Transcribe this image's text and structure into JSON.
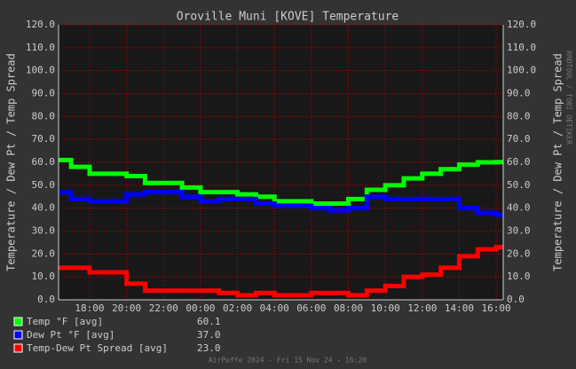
{
  "chart_data": {
    "type": "line",
    "step": true,
    "title": "Oroville Muni [KOVE] Temperature",
    "ylabel": "Temperature / Dew Pt / Temp Spread",
    "y2label": "Temperature / Dew Pt / Temp Spread",
    "watermark": "RRDTOOL / TOBI OETIKER",
    "footer": "AirPuffe 2024 - Fri 15 Nov 24 - 16:20",
    "x": [
      0.32,
      1,
      2,
      3,
      4,
      5,
      6,
      7,
      8,
      9,
      10,
      11,
      12,
      13,
      14,
      15,
      16,
      17,
      18,
      19,
      20,
      21,
      22,
      23,
      24
    ],
    "xlim": [
      0.32,
      24.38
    ],
    "xticks": [
      {
        "value": 2,
        "label": "18:00"
      },
      {
        "value": 4,
        "label": "20:00"
      },
      {
        "value": 6,
        "label": "22:00"
      },
      {
        "value": 8,
        "label": "00:00"
      },
      {
        "value": 10,
        "label": "02:00"
      },
      {
        "value": 12,
        "label": "04:00"
      },
      {
        "value": 14,
        "label": "06:00"
      },
      {
        "value": 16,
        "label": "08:00"
      },
      {
        "value": 18,
        "label": "10:00"
      },
      {
        "value": 20,
        "label": "12:00"
      },
      {
        "value": 22,
        "label": "14:00"
      },
      {
        "value": 24,
        "label": "16:00"
      }
    ],
    "ylim": [
      0,
      120
    ],
    "yticks": [
      {
        "value": 0,
        "label": "0.0"
      },
      {
        "value": 10,
        "label": "10.0"
      },
      {
        "value": 20,
        "label": "20.0"
      },
      {
        "value": 30,
        "label": "30.0"
      },
      {
        "value": 40,
        "label": "40.0"
      },
      {
        "value": 50,
        "label": "50.0"
      },
      {
        "value": 60,
        "label": "60.0"
      },
      {
        "value": 70,
        "label": "70.0"
      },
      {
        "value": 80,
        "label": "80.0"
      },
      {
        "value": 90,
        "label": "90.0"
      },
      {
        "value": 100,
        "label": "100.0"
      },
      {
        "value": 110,
        "label": "110.0"
      },
      {
        "value": 120,
        "label": "120.0"
      }
    ],
    "grid": true,
    "series": [
      {
        "name": "Temp °F [avg]",
        "color": "#00ff00",
        "legend_value": "60.1",
        "values": [
          61,
          58,
          55,
          55,
          54,
          51,
          51,
          49,
          47,
          47,
          46,
          45,
          43,
          43,
          42,
          42,
          44,
          48,
          50,
          53,
          55,
          57,
          59,
          60,
          60.1
        ]
      },
      {
        "name": "Dew Pt °F [avg]",
        "color": "#0000ff",
        "legend_value": "37.0",
        "values": [
          47,
          44,
          43,
          43,
          46,
          47,
          47,
          45,
          43,
          44,
          44,
          42,
          41,
          41,
          40,
          39,
          40,
          45,
          44,
          44,
          44,
          44,
          40,
          38,
          37
        ]
      },
      {
        "name": "Temp-Dew Pt Spread [avg]",
        "color": "#ff0000",
        "legend_value": "23.0",
        "values": [
          14,
          14,
          12,
          12,
          7,
          4,
          4,
          4,
          4,
          3,
          2,
          3,
          2,
          2,
          3,
          3,
          2,
          4,
          6,
          10,
          11,
          14,
          19,
          22,
          23
        ]
      }
    ]
  }
}
